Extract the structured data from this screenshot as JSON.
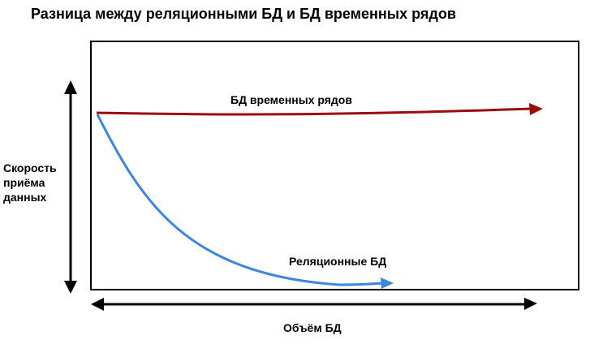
{
  "title": "Разница между реляционными БД и БД временных рядов",
  "y_axis_label": [
    "Скорость",
    "приёма",
    "данных"
  ],
  "x_axis_label": "Объём БД",
  "series": {
    "timeseries": {
      "label": "БД временных рядов",
      "color": "#9b0d0d"
    },
    "relational": {
      "label": "Реляционные БД",
      "color": "#3d86db"
    }
  },
  "axis_color": "#000000"
}
